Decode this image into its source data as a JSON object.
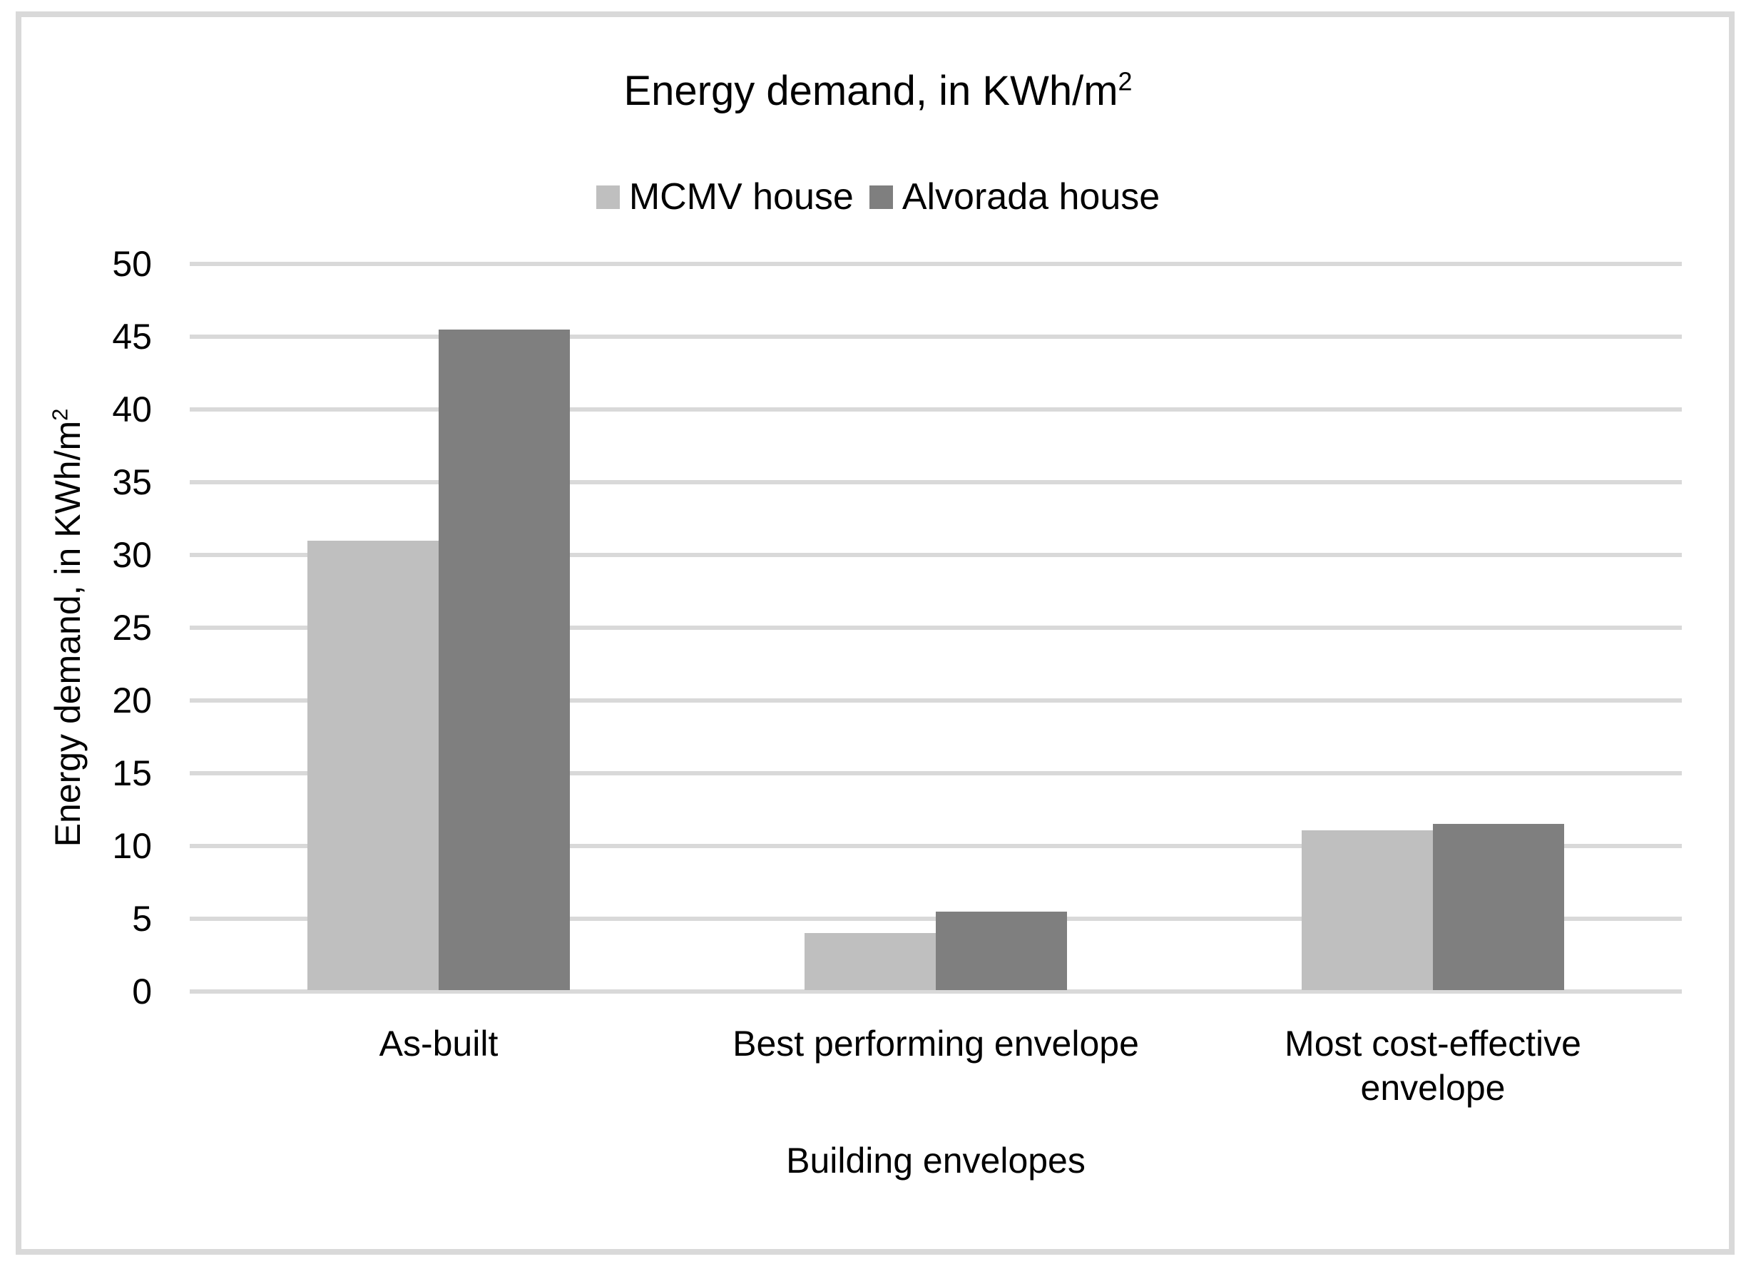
{
  "header": {
    "title_main": "Energy demand, in KWh/m",
    "title_sup": "2"
  },
  "legend": {
    "items": [
      {
        "label": "MCMV house",
        "color": "#bfbfbf"
      },
      {
        "label": "Alvorada house",
        "color": "#7f7f7f"
      }
    ]
  },
  "y_axis": {
    "title_main": "Energy demand, in KWh/m",
    "title_sup": "2",
    "min": 0,
    "max": 50,
    "tick_step": 5,
    "tick_labels": [
      "0",
      "5",
      "10",
      "15",
      "20",
      "25",
      "30",
      "35",
      "40",
      "45",
      "50"
    ]
  },
  "x_axis": {
    "title": "Building envelopes",
    "category_lines": [
      [
        "As-built"
      ],
      [
        "Best performing envelope"
      ],
      [
        "Most cost-effective",
        "envelope"
      ]
    ]
  },
  "colors": {
    "gridline": "#d9d9d9",
    "frame": "#d9d9d9",
    "text": "#000000",
    "series_mcmv": "#bfbfbf",
    "series_alvorada": "#7f7f7f"
  },
  "chart_data": {
    "type": "bar",
    "title": "Energy demand, in KWh/m2",
    "categories": [
      "As-built",
      "Best performing envelope",
      "Most cost-effective envelope"
    ],
    "series": [
      {
        "name": "MCMV house",
        "color": "#bfbfbf",
        "values": [
          30.9,
          3.9,
          11.0
        ]
      },
      {
        "name": "Alvorada house",
        "color": "#7f7f7f",
        "values": [
          45.4,
          5.4,
          11.4
        ]
      }
    ],
    "xlabel": "Building envelopes",
    "ylabel": "Energy demand, in KWh/m2",
    "ylim": [
      0,
      50
    ],
    "ytick_step": 5,
    "grid": true,
    "legend_position": "top-center"
  }
}
